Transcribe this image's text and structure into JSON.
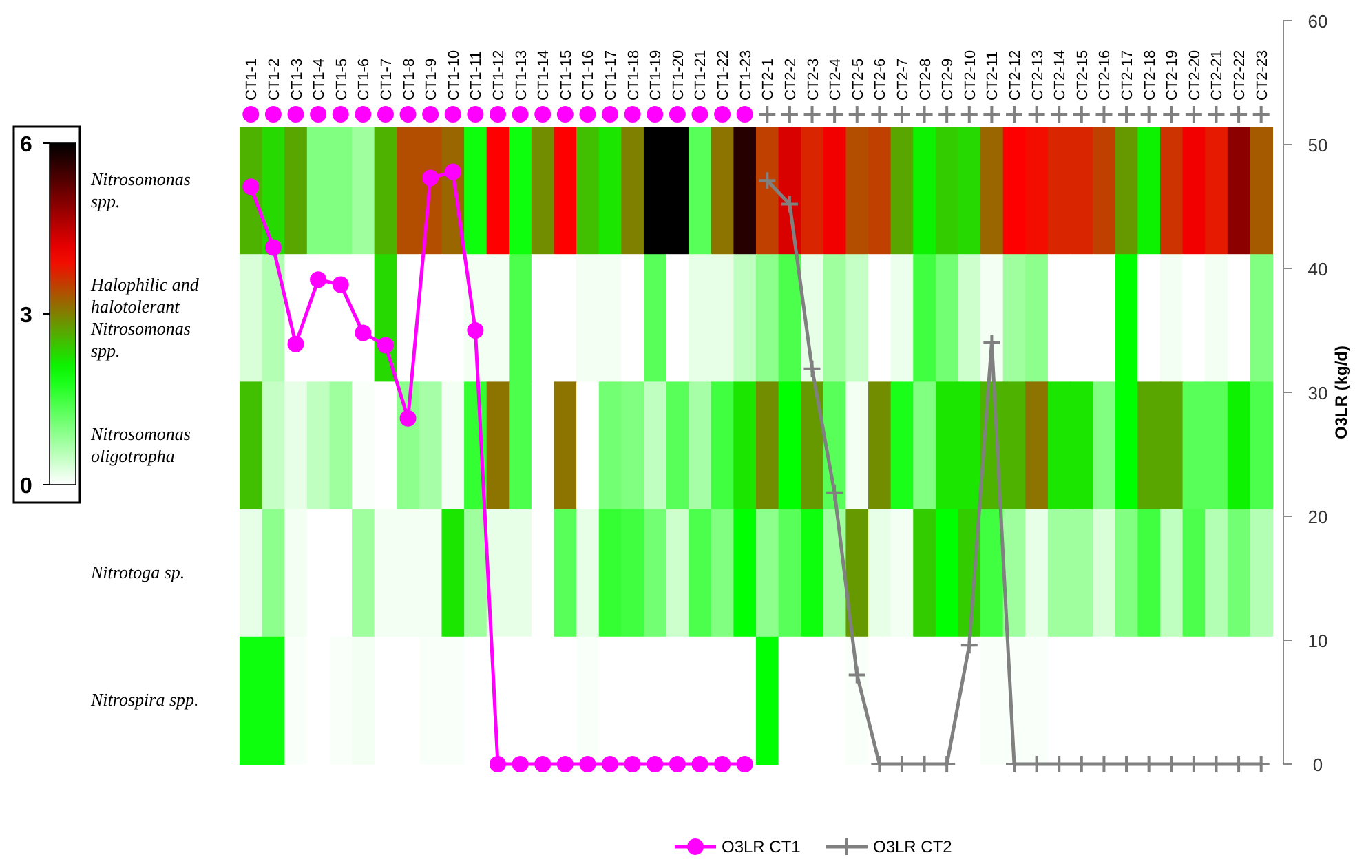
{
  "chart_data": {
    "type": "heatmap",
    "categories": [
      "CT1-1",
      "CT1-2",
      "CT1-3",
      "CT1-4",
      "CT1-5",
      "CT1-6",
      "CT1-7",
      "CT1-8",
      "CT1-9",
      "CT1-10",
      "CT1-11",
      "CT1-12",
      "CT1-13",
      "CT1-14",
      "CT1-15",
      "CT1-16",
      "CT1-17",
      "CT1-18",
      "CT1-19",
      "CT1-20",
      "CT1-21",
      "CT1-22",
      "CT1-23",
      "CT2-1",
      "CT2-2",
      "CT2-3",
      "CT2-4",
      "CT2-5",
      "CT2-6",
      "CT2-7",
      "CT2-8",
      "CT2-9",
      "CT2-10",
      "CT2-11",
      "CT2-12",
      "CT2-13",
      "CT2-14",
      "CT2-15",
      "CT2-16",
      "CT2-17",
      "CT2-18",
      "CT2-19",
      "CT2-20",
      "CT2-21",
      "CT2-22",
      "CT2-23"
    ],
    "y_categories": [
      "Nitrosomonas spp.",
      "Halophilic and halotolerant Nitrosomonas spp.",
      "Nitrosomonas oligotropha",
      "Nitrotoga sp.",
      "Nitrospira spp."
    ],
    "cells": [
      [
        2.6,
        2.3,
        2.7,
        1.0,
        1.0,
        0.75,
        2.6,
        3.4,
        3.4,
        3.2,
        1.9,
        4.0,
        1.9,
        2.9,
        4.0,
        2.5,
        2.2,
        3.0,
        6,
        6,
        1.3,
        3.1,
        5.7,
        3.5,
        4.3,
        3.7,
        4.1,
        3.4,
        3.5,
        2.7,
        2.1,
        2.4,
        2.3,
        3.2,
        4.0,
        3.9,
        3.7,
        3.7,
        3.5,
        2.8,
        2.1,
        3.6,
        4.1,
        3.8,
        4.9,
        3.3
      ],
      [
        0.3,
        0.6,
        0,
        0,
        0,
        0,
        2.3,
        0,
        0,
        0,
        0.1,
        0.1,
        1.4,
        0,
        0,
        0.1,
        0.1,
        0,
        1.3,
        0,
        0.2,
        0.2,
        0.5,
        0.9,
        1.4,
        0.2,
        0.75,
        0.45,
        0,
        0.15,
        1.5,
        1.1,
        0.4,
        0.1,
        0.75,
        0.9,
        0,
        0,
        0,
        2.0,
        0,
        0.1,
        0,
        0.1,
        0,
        1.0
      ],
      [
        2.5,
        0.45,
        0.2,
        0.5,
        0.75,
        0.05,
        0,
        0.9,
        0.7,
        0.1,
        1.6,
        3.1,
        1.4,
        0,
        3.1,
        0,
        1.1,
        1.0,
        0.5,
        1.3,
        0.7,
        1.5,
        2.2,
        2.9,
        2.0,
        2.8,
        1.3,
        0.1,
        2.9,
        1.8,
        1.0,
        2.2,
        2.2,
        2.6,
        2.6,
        3.1,
        2.2,
        2.2,
        1.0,
        2.0,
        2.7,
        2.7,
        1.3,
        1.3,
        2.1,
        1.4
      ],
      [
        0.2,
        0.9,
        0.1,
        0,
        0,
        0.75,
        0.1,
        0.1,
        0.1,
        2.2,
        0.75,
        0.2,
        0.2,
        0,
        1.3,
        0.2,
        1.6,
        1.5,
        1.1,
        0.4,
        1.4,
        1.0,
        2.0,
        0.9,
        1.3,
        1.9,
        0.75,
        2.8,
        0.2,
        0.1,
        2.4,
        2.0,
        2.4,
        1.5,
        0.75,
        0.2,
        0.75,
        0.75,
        0.3,
        1.0,
        1.5,
        0.5,
        1.4,
        0.6,
        1.1,
        0.6
      ],
      [
        1.9,
        1.9,
        0.05,
        0,
        0.05,
        0.1,
        0,
        0,
        0.05,
        0.05,
        0,
        0,
        0,
        0,
        0,
        0.05,
        0,
        0,
        0,
        0,
        0,
        0,
        0,
        2.0,
        0,
        0,
        0,
        0.05,
        0,
        0,
        0,
        0,
        0,
        0.05,
        0.05,
        0.05,
        0,
        0,
        0,
        0,
        0,
        0,
        0,
        0,
        0,
        0
      ]
    ],
    "clim": [
      0,
      6
    ],
    "cticks": [
      0,
      3,
      6
    ],
    "y2label": "O3LR (kg/d)",
    "y2lim": [
      0,
      60
    ],
    "y2ticks": [
      0,
      10,
      20,
      30,
      40,
      50,
      60
    ],
    "legend": "bottom",
    "series": [
      {
        "name": "O3LR CT1",
        "type": "line",
        "axis": "y2",
        "color": "#ff00ff",
        "marker": "circle",
        "values": [
          46.6,
          41.7,
          33.9,
          39.1,
          38.7,
          34.8,
          33.8,
          27.9,
          47.3,
          47.8,
          35.0,
          0,
          0,
          0,
          0,
          0,
          0,
          0,
          0,
          0,
          0,
          0,
          0,
          null,
          null,
          null,
          null,
          null,
          null,
          null,
          null,
          null,
          null,
          null,
          null,
          null,
          null,
          null,
          null,
          null,
          null,
          null,
          null,
          null,
          null,
          null
        ]
      },
      {
        "name": "O3LR CT2",
        "type": "line",
        "axis": "y2",
        "color": "#808080",
        "marker": "cross",
        "values": [
          null,
          null,
          null,
          null,
          null,
          null,
          null,
          null,
          null,
          null,
          null,
          null,
          null,
          null,
          null,
          null,
          null,
          null,
          null,
          null,
          null,
          null,
          null,
          47.1,
          45.2,
          31.9,
          21.9,
          7.2,
          0,
          0,
          0,
          0,
          9.6,
          34.0,
          0,
          0,
          0,
          0,
          0,
          0,
          0,
          0,
          0,
          0,
          0,
          0
        ]
      }
    ]
  }
}
